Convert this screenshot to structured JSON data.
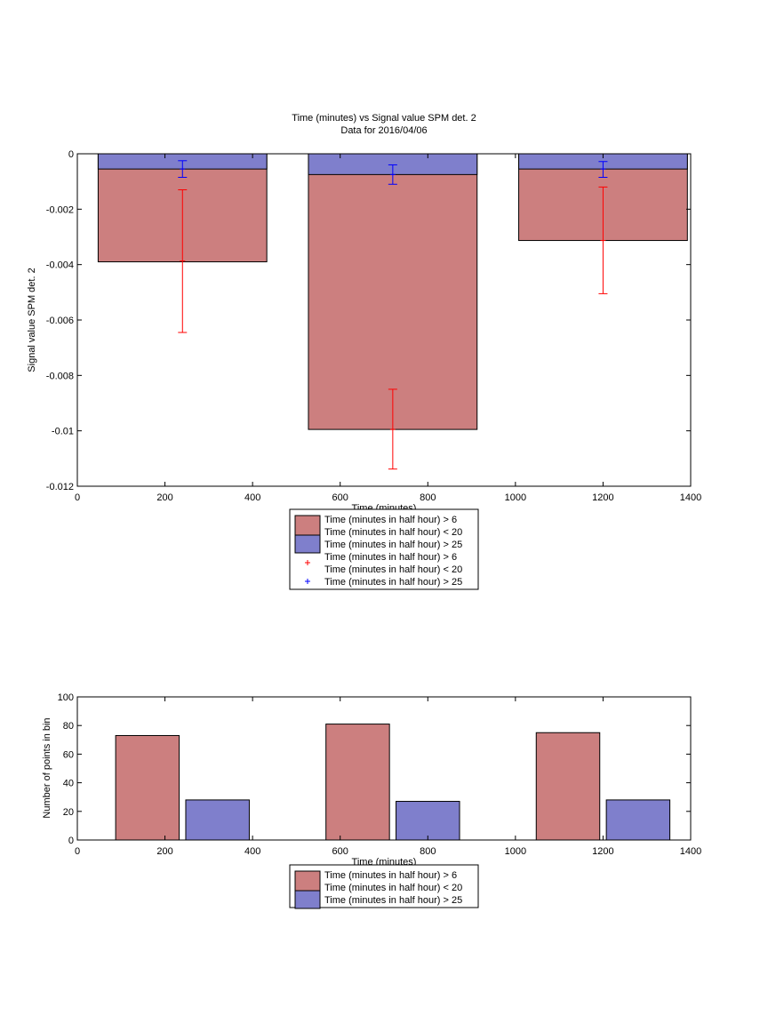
{
  "chart_data": [
    {
      "type": "bar",
      "title": "Time (minutes) vs Signal value SPM det. 2",
      "subtitle": "Data for 2016/04/06",
      "xlabel": "Time (minutes)",
      "ylabel": "Signal value SPM det. 2",
      "xlim": [
        0,
        1400
      ],
      "ylim": [
        -0.012,
        0
      ],
      "xticks": [
        0,
        200,
        400,
        600,
        800,
        1000,
        1200,
        1400
      ],
      "xtick_labels": [
        "0",
        "200",
        "400",
        "600",
        "800",
        "1000",
        "1200",
        "1400"
      ],
      "yticks": [
        0,
        -0.002,
        -0.004,
        -0.006,
        -0.008,
        -0.01,
        -0.012
      ],
      "ytick_labels": [
        "0",
        "-0.002",
        "-0.004",
        "-0.006",
        "-0.008",
        "-0.01",
        "-0.012"
      ],
      "bar_width": 385,
      "x": [
        240,
        720,
        1200
      ],
      "series": [
        {
          "name": "Time (minutes in half hour) > 6\nTime (minutes in half hour) < 20",
          "color": "#cc7f7f",
          "values": [
            -0.0039,
            -0.00995,
            -0.00313
          ],
          "error_values": [
            -0.00387,
            -0.00995,
            -0.00313
          ],
          "error_low": [
            -0.00645,
            -0.01138,
            -0.00505
          ],
          "error_high": [
            -0.0013,
            -0.0085,
            -0.0012
          ],
          "error_color": "#ff0000"
        },
        {
          "name": "Time (minutes in half hour) > 25",
          "color": "#7f7fcc",
          "values": [
            -0.00055,
            -0.00075,
            -0.00055
          ],
          "error_values": [
            -0.00055,
            -0.00075,
            -0.00055
          ],
          "error_low": [
            -0.00085,
            -0.0011,
            -0.00085
          ],
          "error_high": [
            -0.00025,
            -0.0004,
            -0.00028
          ],
          "error_color": "#0000ff"
        }
      ],
      "legend": {
        "placement": "below",
        "entries": [
          {
            "kind": "patch",
            "color": "#cc7f7f",
            "lines": [
              "Time (minutes in half hour) > 6",
              "Time (minutes in half hour) < 20"
            ]
          },
          {
            "kind": "patch",
            "color": "#7f7fcc",
            "lines": [
              "Time (minutes in half hour) > 25"
            ]
          },
          {
            "kind": "marker",
            "color": "#ff0000",
            "lines": [
              "Time (minutes in half hour) > 6",
              "Time (minutes in half hour) < 20"
            ]
          },
          {
            "kind": "marker",
            "color": "#0000ff",
            "lines": [
              "Time (minutes in half hour) > 25"
            ]
          }
        ]
      }
    },
    {
      "type": "bar",
      "title": "",
      "xlabel": "Time (minutes)",
      "ylabel": "Number of points in bin",
      "xlim": [
        0,
        1400
      ],
      "ylim": [
        0,
        100
      ],
      "xticks": [
        0,
        200,
        400,
        600,
        800,
        1000,
        1200,
        1400
      ],
      "xtick_labels": [
        "0",
        "200",
        "400",
        "600",
        "800",
        "1000",
        "1200",
        "1400"
      ],
      "yticks": [
        0,
        20,
        40,
        60,
        80,
        100
      ],
      "ytick_labels": [
        "0",
        "20",
        "40",
        "60",
        "80",
        "100"
      ],
      "bar_width": 145,
      "series": [
        {
          "name": "Time (minutes in half hour) > 6\nTime (minutes in half hour) < 20",
          "color": "#cc7f7f",
          "x": [
            160,
            640,
            1120
          ],
          "values": [
            73,
            81,
            75
          ]
        },
        {
          "name": "Time (minutes in half hour) > 25",
          "color": "#7f7fcc",
          "x": [
            320,
            800,
            1280
          ],
          "values": [
            28,
            27,
            28
          ]
        }
      ],
      "legend": {
        "placement": "below",
        "entries": [
          {
            "kind": "patch",
            "color": "#cc7f7f",
            "lines": [
              "Time (minutes in half hour) > 6",
              "Time (minutes in half hour) < 20"
            ]
          },
          {
            "kind": "patch",
            "color": "#7f7fcc",
            "lines": [
              "Time (minutes in half hour) > 25"
            ]
          }
        ]
      }
    }
  ]
}
